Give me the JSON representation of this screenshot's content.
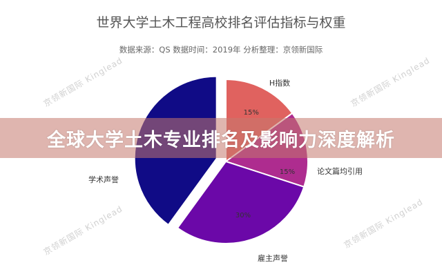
{
  "chart_data": {
    "type": "pie",
    "title": "世界大学土木工程高校排名评估指标与权重",
    "subtitle": "数据来源：QS 数据时间：2019年 分析整理：京领新国际",
    "slices": [
      {
        "label": "H指数",
        "value": 15,
        "value_label": "15%",
        "color": "#e0625f"
      },
      {
        "label": "论文篇均引用",
        "value": 15,
        "value_label": "15%",
        "color": "#ae2c8f"
      },
      {
        "label": "雇主声誉",
        "value": 30,
        "value_label": "30%",
        "color": "#6b08a8"
      },
      {
        "label": "学术声誉",
        "value": 40,
        "value_label": "",
        "color": "#100b86",
        "exploded": true
      }
    ],
    "start_angle": "12 o'clock, clockwise"
  },
  "banner": {
    "text": "全球大学土木专业排名及影响力深度解析"
  },
  "watermark": "京领新国际 Kinglead"
}
